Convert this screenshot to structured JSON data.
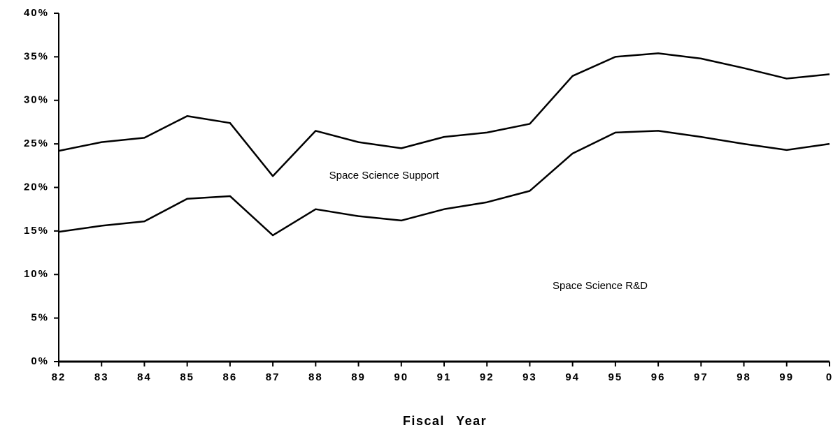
{
  "chart_data": {
    "type": "stacked-line",
    "xlabel": "Fiscal Year",
    "categories": [
      "82",
      "83",
      "84",
      "85",
      "86",
      "87",
      "88",
      "89",
      "90",
      "91",
      "92",
      "93",
      "94",
      "95",
      "96",
      "97",
      "98",
      "99",
      "0"
    ],
    "series": [
      {
        "name": "Space Science R&D",
        "color": "#000000",
        "values": [
          14.9,
          15.6,
          16.1,
          18.7,
          19.0,
          14.5,
          17.5,
          16.7,
          16.2,
          17.5,
          18.3,
          19.6,
          23.9,
          26.3,
          26.5,
          25.8,
          25.0,
          24.3,
          25.0
        ]
      },
      {
        "name": "Space Science Support",
        "color": "#000000",
        "values": [
          9.3,
          9.6,
          9.6,
          9.5,
          8.4,
          6.8,
          9.0,
          8.5,
          8.3,
          8.3,
          8.0,
          7.7,
          8.9,
          8.7,
          8.9,
          9.0,
          8.7,
          8.2,
          8.0
        ]
      }
    ],
    "ylim": [
      0,
      40
    ],
    "yticks": [
      {
        "value": 0,
        "label": "0%"
      },
      {
        "value": 5,
        "label": "5%"
      },
      {
        "value": 10,
        "label": "10%"
      },
      {
        "value": 15,
        "label": "15%"
      },
      {
        "value": 20,
        "label": "20%"
      },
      {
        "value": 25,
        "label": "25%"
      },
      {
        "value": 30,
        "label": "30%"
      },
      {
        "value": 35,
        "label": "35%"
      },
      {
        "value": 40,
        "label": "40%"
      }
    ]
  }
}
